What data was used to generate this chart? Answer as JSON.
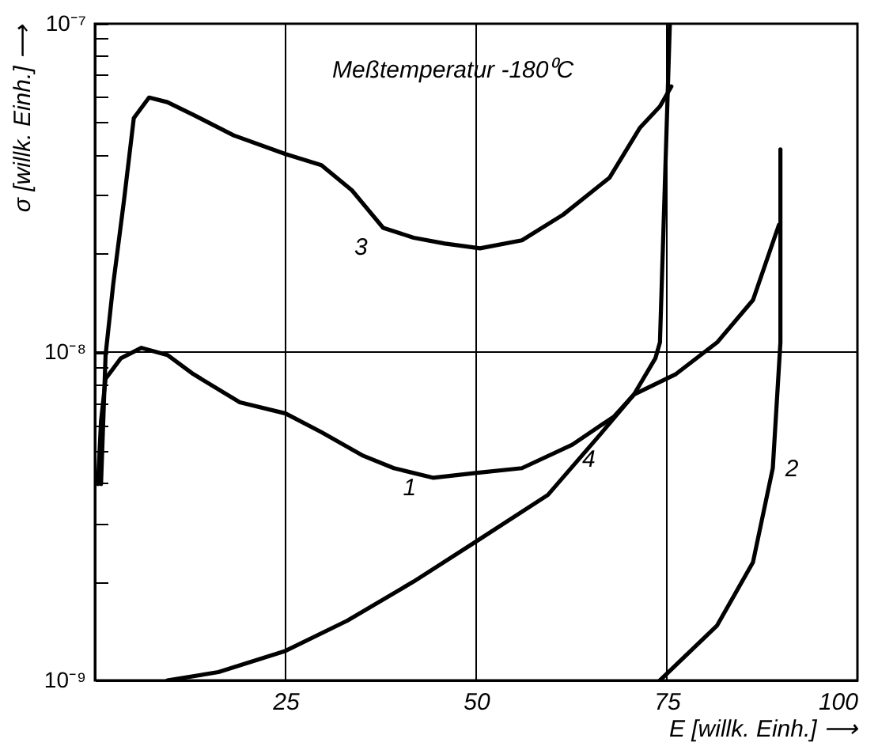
{
  "chart_data": {
    "type": "line",
    "annotations": [
      "Meßtemperatur -180⁰C"
    ],
    "xlabel": "E [willk. Einh.] ⟶",
    "ylabel": "σ [willk. Einh.] ⟶",
    "xlim": [
      0,
      100
    ],
    "xticks": [
      25,
      50,
      75,
      100
    ],
    "ylim": [
      1e-09,
      1e-07
    ],
    "log": "y",
    "yticks": [
      {
        "value": 1e-09,
        "label": "10⁻⁹"
      },
      {
        "value": 2e-09,
        "label": null
      },
      {
        "value": 3e-09,
        "label": null
      },
      {
        "value": 4e-09,
        "label": null
      },
      {
        "value": 5e-09,
        "label": null
      },
      {
        "value": 6e-09,
        "label": null
      },
      {
        "value": 7e-09,
        "label": null
      },
      {
        "value": 8e-09,
        "label": null
      },
      {
        "value": 9e-09,
        "label": null
      },
      {
        "value": 1e-08,
        "label": "10⁻⁸"
      },
      {
        "value": 2e-08,
        "label": null
      },
      {
        "value": 3e-08,
        "label": null
      },
      {
        "value": 4e-08,
        "label": null
      },
      {
        "value": 5e-08,
        "label": null
      },
      {
        "value": 6e-08,
        "label": null
      },
      {
        "value": 7e-08,
        "label": null
      },
      {
        "value": 8e-08,
        "label": null
      },
      {
        "value": 9e-08,
        "label": null
      },
      {
        "value": 1e-07,
        "label": "10⁻⁷"
      }
    ],
    "grid": true,
    "legend": false,
    "marker": "none",
    "line_style": "solid",
    "series": [
      {
        "name": "1",
        "color": "#000000",
        "x": [
          0.4,
          0.8,
          1.4,
          3.4,
          6.1,
          9.5,
          12.9,
          19,
          25,
          29.7,
          35.2,
          39.2,
          44.4,
          49.9,
          56,
          62.6,
          68.1,
          70.7,
          73.5,
          74.1,
          75.4
        ],
        "values": [
          3.96e-09,
          6.15e-09,
          8.29e-09,
          9.57e-09,
          1.03e-08,
          9.8e-09,
          8.57e-09,
          7.03e-09,
          6.5e-09,
          5.7e-09,
          4.83e-09,
          4.43e-09,
          4.14e-09,
          4.28e-09,
          4.43e-09,
          5.22e-09,
          6.37e-09,
          7.43e-09,
          9.57e-09,
          1.07e-08,
          1e-07
        ]
      },
      {
        "name": "2",
        "color": "#000000",
        "x": [
          74.1,
          81.6,
          86.3,
          88.9,
          89.9,
          89.9
        ],
        "values": [
          1e-09,
          1.47e-09,
          2.29e-09,
          4.43e-09,
          1.07e-08,
          4.14e-08
        ]
      },
      {
        "name": "3",
        "color": "#000000",
        "x": [
          0.8,
          1.4,
          2.4,
          3.8,
          5.1,
          7.1,
          9.5,
          12.9,
          18.2,
          25,
          29.7,
          33.7,
          37.8,
          41.8,
          45.9,
          50.5,
          56,
          61.4,
          67.5,
          71.5,
          74.1,
          75.6
        ],
        "values": [
          3.96e-09,
          9.8e-09,
          1.61e-08,
          2.88e-08,
          5.16e-08,
          5.96e-08,
          5.77e-08,
          5.28e-08,
          4.57e-08,
          4.01e-08,
          3.71e-08,
          3.11e-08,
          2.39e-08,
          2.23e-08,
          2.14e-08,
          2.07e-08,
          2.19e-08,
          2.62e-08,
          3.4e-08,
          4.83e-08,
          5.6e-08,
          6.44e-08
        ]
      },
      {
        "name": "4",
        "color": "#000000",
        "x": [
          9.5,
          16.2,
          25,
          33.1,
          41.8,
          49.9,
          59.4,
          66,
          70.7,
          76.2,
          81.6,
          86.3,
          89.7
        ],
        "values": [
          1e-09,
          1.06e-09,
          1.23e-09,
          1.52e-09,
          2e-09,
          2.64e-09,
          3.67e-09,
          5.52e-09,
          7.43e-09,
          8.57e-09,
          1.07e-08,
          1.44e-08,
          2.44e-08
        ]
      }
    ]
  }
}
